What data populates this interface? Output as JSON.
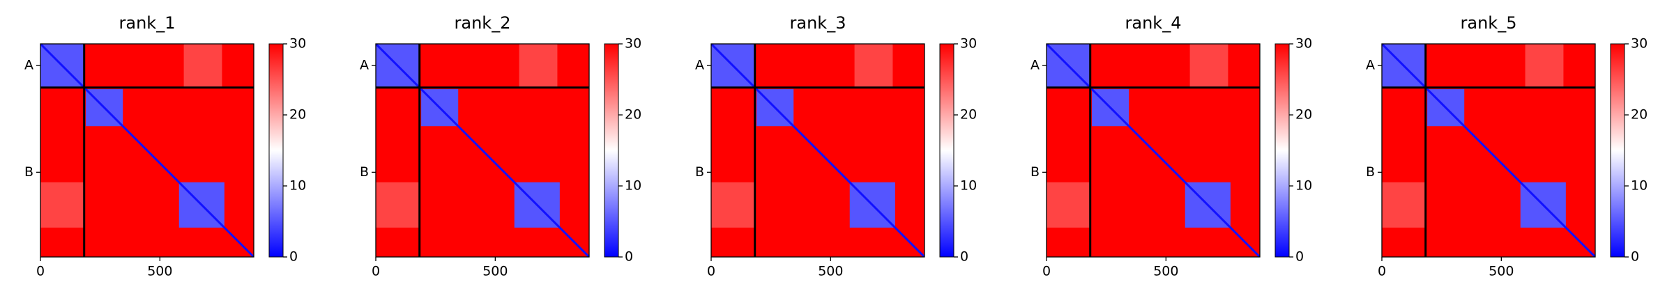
{
  "chart_data": [
    {
      "type": "heatmap",
      "title": "rank_1",
      "xlim": [
        0,
        893
      ],
      "ylim": [
        893,
        0
      ],
      "xticks": [
        0,
        500
      ],
      "yticks": [
        {
          "value": 91,
          "label": "A"
        },
        {
          "value": 538,
          "label": "B"
        }
      ],
      "chain_breaks": [
        183
      ],
      "background": 30,
      "diagonal": 1,
      "clim": [
        0,
        30
      ],
      "cticks": [
        0,
        10,
        20,
        30
      ],
      "colormap": [
        "#0000ff",
        "#ffffff",
        "#ff0000"
      ],
      "regions": [
        {
          "x": [
            0,
            183
          ],
          "y": [
            0,
            183
          ],
          "value": 5
        },
        {
          "x": [
            600,
            760
          ],
          "y": [
            0,
            183
          ],
          "value": 26
        },
        {
          "x": [
            0,
            183
          ],
          "y": [
            580,
            770
          ],
          "value": 26
        },
        {
          "x": [
            190,
            345
          ],
          "y": [
            190,
            345
          ],
          "value": 5
        },
        {
          "x": [
            580,
            770
          ],
          "y": [
            580,
            770
          ],
          "value": 5
        }
      ]
    },
    {
      "type": "heatmap",
      "title": "rank_2",
      "xlim": [
        0,
        893
      ],
      "ylim": [
        893,
        0
      ],
      "xticks": [
        0,
        500
      ],
      "yticks": [
        {
          "value": 91,
          "label": "A"
        },
        {
          "value": 538,
          "label": "B"
        }
      ],
      "chain_breaks": [
        183
      ],
      "background": 30,
      "diagonal": 1,
      "clim": [
        0,
        30
      ],
      "cticks": [
        0,
        10,
        20,
        30
      ],
      "colormap": [
        "#0000ff",
        "#ffffff",
        "#ff0000"
      ],
      "regions": [
        {
          "x": [
            0,
            183
          ],
          "y": [
            0,
            183
          ],
          "value": 5
        },
        {
          "x": [
            600,
            760
          ],
          "y": [
            0,
            183
          ],
          "value": 26
        },
        {
          "x": [
            0,
            183
          ],
          "y": [
            580,
            770
          ],
          "value": 26
        },
        {
          "x": [
            190,
            345
          ],
          "y": [
            190,
            345
          ],
          "value": 5
        },
        {
          "x": [
            580,
            770
          ],
          "y": [
            580,
            770
          ],
          "value": 5
        }
      ]
    },
    {
      "type": "heatmap",
      "title": "rank_3",
      "xlim": [
        0,
        893
      ],
      "ylim": [
        893,
        0
      ],
      "xticks": [
        0,
        500
      ],
      "yticks": [
        {
          "value": 91,
          "label": "A"
        },
        {
          "value": 538,
          "label": "B"
        }
      ],
      "chain_breaks": [
        183
      ],
      "background": 30,
      "diagonal": 1,
      "clim": [
        0,
        30
      ],
      "cticks": [
        0,
        10,
        20,
        30
      ],
      "colormap": [
        "#0000ff",
        "#ffffff",
        "#ff0000"
      ],
      "regions": [
        {
          "x": [
            0,
            183
          ],
          "y": [
            0,
            183
          ],
          "value": 5
        },
        {
          "x": [
            600,
            760
          ],
          "y": [
            0,
            183
          ],
          "value": 26
        },
        {
          "x": [
            0,
            183
          ],
          "y": [
            580,
            770
          ],
          "value": 26
        },
        {
          "x": [
            190,
            345
          ],
          "y": [
            190,
            345
          ],
          "value": 5
        },
        {
          "x": [
            580,
            770
          ],
          "y": [
            580,
            770
          ],
          "value": 5
        }
      ]
    },
    {
      "type": "heatmap",
      "title": "rank_4",
      "xlim": [
        0,
        893
      ],
      "ylim": [
        893,
        0
      ],
      "xticks": [
        0,
        500
      ],
      "yticks": [
        {
          "value": 91,
          "label": "A"
        },
        {
          "value": 538,
          "label": "B"
        }
      ],
      "chain_breaks": [
        183
      ],
      "background": 30,
      "diagonal": 1,
      "clim": [
        0,
        30
      ],
      "cticks": [
        0,
        10,
        20,
        30
      ],
      "colormap": [
        "#0000ff",
        "#ffffff",
        "#ff0000"
      ],
      "regions": [
        {
          "x": [
            0,
            183
          ],
          "y": [
            0,
            183
          ],
          "value": 5
        },
        {
          "x": [
            600,
            760
          ],
          "y": [
            0,
            183
          ],
          "value": 26
        },
        {
          "x": [
            0,
            183
          ],
          "y": [
            580,
            770
          ],
          "value": 26
        },
        {
          "x": [
            190,
            345
          ],
          "y": [
            190,
            345
          ],
          "value": 5
        },
        {
          "x": [
            580,
            770
          ],
          "y": [
            580,
            770
          ],
          "value": 5
        }
      ]
    },
    {
      "type": "heatmap",
      "title": "rank_5",
      "xlim": [
        0,
        893
      ],
      "ylim": [
        893,
        0
      ],
      "xticks": [
        0,
        500
      ],
      "yticks": [
        {
          "value": 91,
          "label": "A"
        },
        {
          "value": 538,
          "label": "B"
        }
      ],
      "chain_breaks": [
        183
      ],
      "background": 30,
      "diagonal": 1,
      "clim": [
        0,
        30
      ],
      "cticks": [
        0,
        10,
        20,
        30
      ],
      "colormap": [
        "#0000ff",
        "#ffffff",
        "#ff0000"
      ],
      "regions": [
        {
          "x": [
            0,
            183
          ],
          "y": [
            0,
            183
          ],
          "value": 5
        },
        {
          "x": [
            600,
            760
          ],
          "y": [
            0,
            183
          ],
          "value": 26
        },
        {
          "x": [
            0,
            183
          ],
          "y": [
            580,
            770
          ],
          "value": 26
        },
        {
          "x": [
            190,
            345
          ],
          "y": [
            190,
            345
          ],
          "value": 5
        },
        {
          "x": [
            580,
            770
          ],
          "y": [
            580,
            770
          ],
          "value": 5
        }
      ]
    }
  ]
}
